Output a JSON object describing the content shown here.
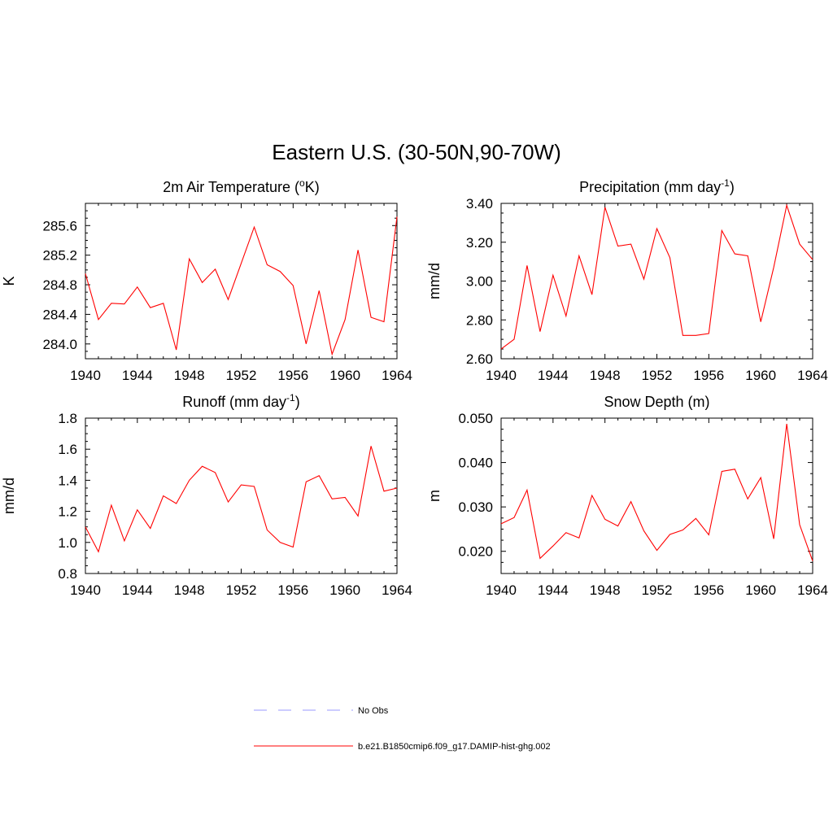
{
  "title": "Eastern U.S. (30-50N,90-70W)",
  "legend": {
    "items": [
      {
        "label": "No Obs",
        "color": "#9a9aff",
        "style": "dashed"
      },
      {
        "label": "b.e21.B1850cmip6.f09_g17.DAMIP-hist-ghg.002",
        "color": "#ff0000",
        "style": "solid"
      }
    ]
  },
  "chart_data": [
    {
      "type": "line",
      "title": "2m Air Temperature (°K)",
      "title_parts": {
        "pre": "2m Air Temperature (",
        "sup": "o",
        "post": "K)"
      },
      "xlabel": "",
      "ylabel": "K",
      "xlim": [
        1940,
        1964
      ],
      "ylim": [
        283.8,
        285.9
      ],
      "x_ticks": [
        1940,
        1944,
        1948,
        1952,
        1956,
        1960,
        1964
      ],
      "y_ticks": [
        284.0,
        284.4,
        284.8,
        285.2,
        285.6
      ],
      "y_tick_labels": [
        "284.0",
        "284.4",
        "284.8",
        "285.2",
        "285.6"
      ],
      "grid": false,
      "series": [
        {
          "color": "#ff0000",
          "x": [
            1940,
            1941,
            1942,
            1943,
            1944,
            1945,
            1946,
            1947,
            1948,
            1949,
            1950,
            1951,
            1952,
            1953,
            1954,
            1955,
            1956,
            1957,
            1958,
            1959,
            1960,
            1961,
            1962,
            1963,
            1964
          ],
          "values": [
            284.95,
            284.33,
            284.55,
            284.54,
            284.77,
            284.49,
            284.55,
            283.92,
            285.15,
            284.83,
            285.01,
            284.6,
            285.09,
            285.58,
            285.07,
            284.98,
            284.79,
            284.0,
            284.72,
            283.86,
            284.33,
            285.27,
            284.36,
            284.3,
            285.72
          ]
        }
      ]
    },
    {
      "type": "line",
      "title": "Precipitation (mm day-1)",
      "title_parts": {
        "pre": "Precipitation (mm day",
        "sup": "-1",
        "post": ")"
      },
      "xlabel": "",
      "ylabel": "mm/d",
      "xlim": [
        1940,
        1964
      ],
      "ylim": [
        2.6,
        3.4
      ],
      "x_ticks": [
        1940,
        1944,
        1948,
        1952,
        1956,
        1960,
        1964
      ],
      "y_ticks": [
        2.6,
        2.8,
        3.0,
        3.2,
        3.4
      ],
      "y_tick_labels": [
        "2.60",
        "2.80",
        "3.00",
        "3.20",
        "3.40"
      ],
      "grid": false,
      "series": [
        {
          "color": "#ff0000",
          "x": [
            1940,
            1941,
            1942,
            1943,
            1944,
            1945,
            1946,
            1947,
            1948,
            1949,
            1950,
            1951,
            1952,
            1953,
            1954,
            1955,
            1956,
            1957,
            1958,
            1959,
            1960,
            1961,
            1962,
            1963,
            1964
          ],
          "values": [
            2.65,
            2.7,
            3.08,
            2.74,
            3.03,
            2.82,
            3.13,
            2.93,
            3.38,
            3.18,
            3.19,
            3.01,
            3.27,
            3.12,
            2.72,
            2.72,
            2.73,
            3.26,
            3.14,
            3.13,
            2.79,
            3.07,
            3.39,
            3.19,
            3.11
          ]
        }
      ]
    },
    {
      "type": "line",
      "title": "Runoff (mm day-1)",
      "title_parts": {
        "pre": "Runoff (mm day",
        "sup": "-1",
        "post": ")"
      },
      "xlabel": "",
      "ylabel": "mm/d",
      "xlim": [
        1940,
        1964
      ],
      "ylim": [
        0.8,
        1.8
      ],
      "x_ticks": [
        1940,
        1944,
        1948,
        1952,
        1956,
        1960,
        1964
      ],
      "y_ticks": [
        0.8,
        1.0,
        1.2,
        1.4,
        1.6,
        1.8
      ],
      "y_tick_labels": [
        "0.8",
        "1.0",
        "1.2",
        "1.4",
        "1.6",
        "1.8"
      ],
      "grid": false,
      "series": [
        {
          "color": "#ff0000",
          "x": [
            1940,
            1941,
            1942,
            1943,
            1944,
            1945,
            1946,
            1947,
            1948,
            1949,
            1950,
            1951,
            1952,
            1953,
            1954,
            1955,
            1956,
            1957,
            1958,
            1959,
            1960,
            1961,
            1962,
            1963,
            1964
          ],
          "values": [
            1.1,
            0.94,
            1.24,
            1.01,
            1.21,
            1.09,
            1.3,
            1.25,
            1.4,
            1.49,
            1.45,
            1.26,
            1.37,
            1.36,
            1.08,
            1.0,
            0.97,
            1.39,
            1.43,
            1.28,
            1.29,
            1.17,
            1.62,
            1.33,
            1.35
          ]
        }
      ]
    },
    {
      "type": "line",
      "title": "Snow Depth (m)",
      "title_parts": {
        "pre": "Snow Depth (m)",
        "sup": "",
        "post": ""
      },
      "xlabel": "",
      "ylabel": "m",
      "xlim": [
        1940,
        1964
      ],
      "ylim": [
        0.015,
        0.05
      ],
      "x_ticks": [
        1940,
        1944,
        1948,
        1952,
        1956,
        1960,
        1964
      ],
      "y_ticks": [
        0.02,
        0.03,
        0.04,
        0.05
      ],
      "y_tick_labels": [
        "0.020",
        "0.030",
        "0.040",
        "0.050"
      ],
      "grid": false,
      "series": [
        {
          "color": "#ff0000",
          "x": [
            1940,
            1941,
            1942,
            1943,
            1944,
            1945,
            1946,
            1947,
            1948,
            1949,
            1950,
            1951,
            1952,
            1953,
            1954,
            1955,
            1956,
            1957,
            1958,
            1959,
            1960,
            1961,
            1962,
            1963,
            1964
          ],
          "values": [
            0.0262,
            0.0276,
            0.0338,
            0.0184,
            0.0212,
            0.0242,
            0.023,
            0.0326,
            0.0272,
            0.0257,
            0.0312,
            0.0246,
            0.0202,
            0.0238,
            0.0248,
            0.0274,
            0.0237,
            0.038,
            0.0385,
            0.0318,
            0.0366,
            0.0228,
            0.0487,
            0.026,
            0.0178
          ]
        }
      ]
    }
  ]
}
